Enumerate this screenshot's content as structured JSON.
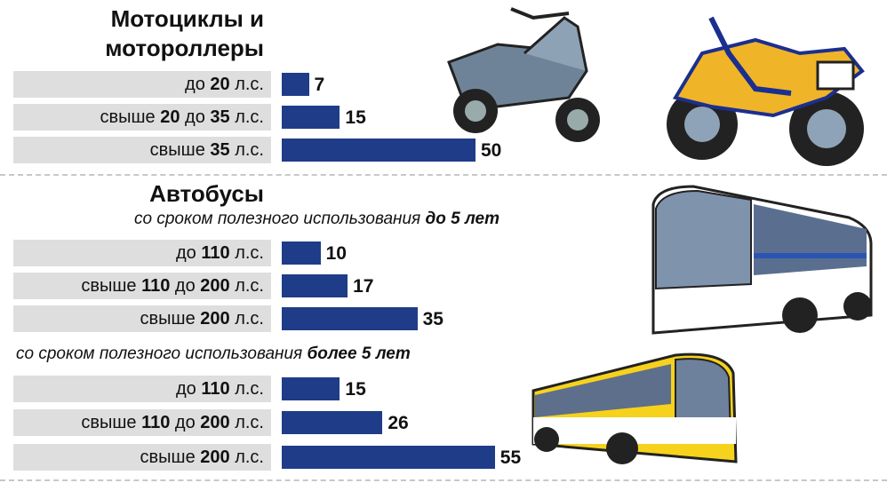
{
  "chart_data": [
    {
      "type": "bar",
      "title": "Мотоциклы и мотороллеры",
      "categories": [
        "до 20 л.с.",
        "свыше 20 до 35 л.с.",
        "свыше 35 л.с."
      ],
      "values": [
        7,
        15,
        50
      ],
      "color": "#1f3c88"
    },
    {
      "type": "bar",
      "title": "Автобусы",
      "subtitle": "со сроком полезного использования до 5 лет",
      "categories": [
        "до 110 л.с.",
        "свыше 110 до 200 л.с.",
        "свыше 200 л.с."
      ],
      "values": [
        10,
        17,
        35
      ],
      "color": "#1f3c88"
    },
    {
      "type": "bar",
      "subtitle": "со сроком полезного использования более 5 лет",
      "categories": [
        "до 110 л.с.",
        "свыше 110 до 200 л.с.",
        "свыше 200 л.с."
      ],
      "values": [
        15,
        26,
        55
      ],
      "color": "#1f3c88"
    }
  ]
}
